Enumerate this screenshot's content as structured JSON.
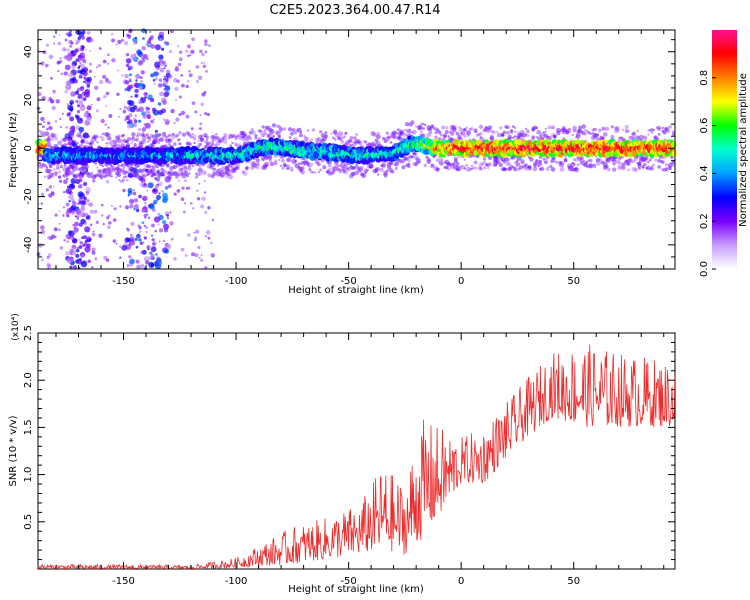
{
  "title": "C2E5.2023.364.00.47.R14",
  "chart_data": [
    {
      "type": "heatmap",
      "xlabel": "Height of straight line (km)",
      "ylabel": "Frequency (Hz)",
      "xlim": [
        -188,
        95
      ],
      "ylim": [
        -50,
        49
      ],
      "xticks": [
        -150,
        -100,
        -50,
        0,
        50
      ],
      "yticks": [
        -40,
        -20,
        0,
        20,
        40
      ],
      "colorbar": {
        "label": "Normalized spectral amplitude",
        "range": [
          0,
          1
        ],
        "ticks": [
          0.0,
          0.2,
          0.4,
          0.6,
          0.8
        ],
        "colormap": [
          "#ffffff",
          "#c79cff",
          "#7a00ff",
          "#0000ff",
          "#00a0ff",
          "#00ffd0",
          "#00ff00",
          "#ffff00",
          "#ff8000",
          "#ff0000",
          "#ff1090"
        ]
      },
      "ridge": [
        {
          "x": -185,
          "y": -3,
          "amp": 0.45
        },
        {
          "x": -160,
          "y": -3,
          "amp": 0.4
        },
        {
          "x": -140,
          "y": -3,
          "amp": 0.4
        },
        {
          "x": -120,
          "y": -3,
          "amp": 0.45
        },
        {
          "x": -100,
          "y": -3,
          "amp": 0.5
        },
        {
          "x": -85,
          "y": 1,
          "amp": 0.55
        },
        {
          "x": -70,
          "y": -1,
          "amp": 0.55
        },
        {
          "x": -55,
          "y": -2,
          "amp": 0.5
        },
        {
          "x": -45,
          "y": -3,
          "amp": 0.5
        },
        {
          "x": -30,
          "y": -2,
          "amp": 0.5
        },
        {
          "x": -22,
          "y": 2,
          "amp": 0.55
        },
        {
          "x": -10,
          "y": 0,
          "amp": 0.8
        },
        {
          "x": 0,
          "y": 0,
          "amp": 0.9
        },
        {
          "x": 25,
          "y": 0,
          "amp": 0.9
        },
        {
          "x": 50,
          "y": 0,
          "amp": 0.9
        },
        {
          "x": 75,
          "y": 0,
          "amp": 0.9
        },
        {
          "x": 95,
          "y": 0,
          "amp": 0.85
        }
      ],
      "noise_bands": [
        {
          "x": [
            -175,
            -165
          ],
          "y": [
            -50,
            49
          ],
          "amp": 0.25
        },
        {
          "x": [
            -150,
            -130
          ],
          "y": [
            -50,
            49
          ],
          "amp": 0.3
        }
      ]
    },
    {
      "type": "line",
      "xlabel": "Height of straight line (km)",
      "ylabel": "SNR (10 * v/v)",
      "y_multiplier": "(x10⁴)",
      "xlim": [
        -188,
        95
      ],
      "ylim": [
        0,
        2.5
      ],
      "xticks": [
        -150,
        -100,
        -50,
        0,
        50
      ],
      "yticks": [
        0.5,
        1.0,
        1.5,
        2.0,
        2.5
      ],
      "color": "#ee2b2b",
      "envelope": [
        {
          "x": -188,
          "lo": 0.0,
          "hi": 0.05
        },
        {
          "x": -120,
          "lo": 0.0,
          "hi": 0.04
        },
        {
          "x": -100,
          "lo": 0.01,
          "hi": 0.12
        },
        {
          "x": -90,
          "lo": 0.03,
          "hi": 0.25
        },
        {
          "x": -75,
          "lo": 0.05,
          "hi": 0.45
        },
        {
          "x": -60,
          "lo": 0.1,
          "hi": 0.55
        },
        {
          "x": -45,
          "lo": 0.15,
          "hi": 0.7
        },
        {
          "x": -35,
          "lo": 0.2,
          "hi": 1.1
        },
        {
          "x": -25,
          "lo": 0.15,
          "hi": 0.9
        },
        {
          "x": -18,
          "lo": 0.3,
          "hi": 1.6
        },
        {
          "x": -8,
          "lo": 0.6,
          "hi": 1.5
        },
        {
          "x": 0,
          "lo": 0.9,
          "hi": 1.4
        },
        {
          "x": 10,
          "lo": 0.9,
          "hi": 1.5
        },
        {
          "x": 25,
          "lo": 1.3,
          "hi": 1.9
        },
        {
          "x": 40,
          "lo": 1.6,
          "hi": 2.3
        },
        {
          "x": 55,
          "lo": 1.5,
          "hi": 2.4
        },
        {
          "x": 70,
          "lo": 1.5,
          "hi": 2.3
        },
        {
          "x": 95,
          "lo": 1.5,
          "hi": 2.2
        }
      ]
    }
  ]
}
